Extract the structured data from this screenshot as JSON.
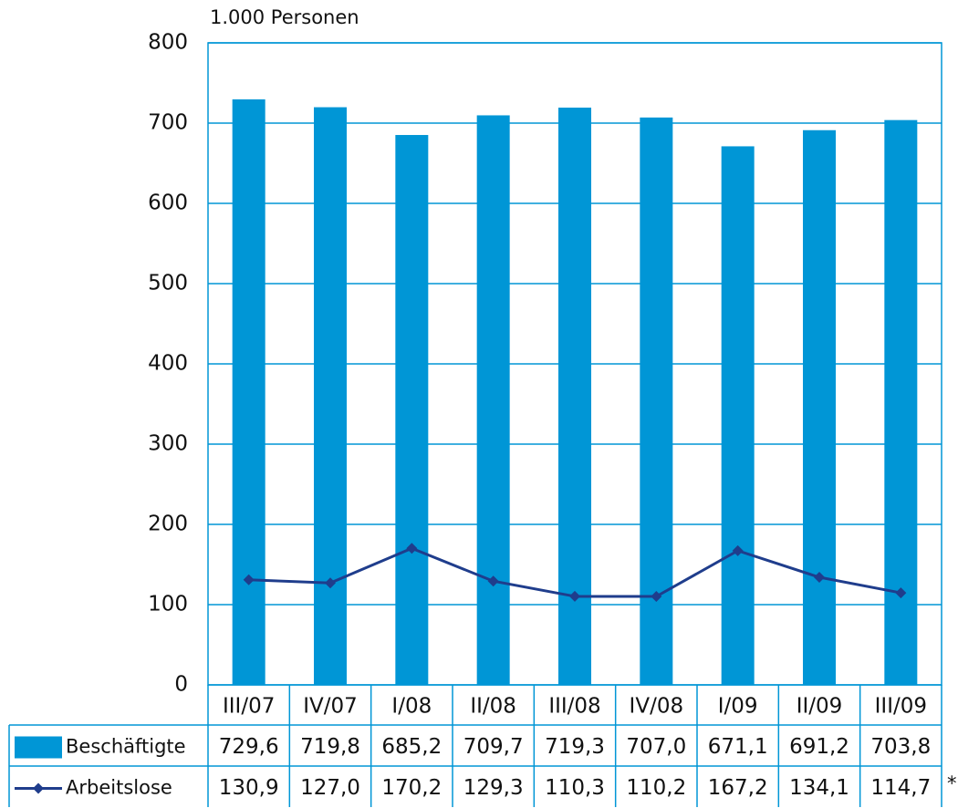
{
  "chart_data": {
    "type": "bar_line_table",
    "y_label": "1.000 Personen",
    "categories": [
      "III/07",
      "IV/07",
      "I/08",
      "II/08",
      "III/08",
      "IV/08",
      "I/09",
      "II/09",
      "III/09"
    ],
    "series": [
      {
        "name": "Beschäftigte",
        "type": "bar",
        "color": "#0096d6",
        "values": [
          729.6,
          719.8,
          685.2,
          709.7,
          719.3,
          707.0,
          671.1,
          691.2,
          703.8
        ],
        "value_labels": [
          "729,6",
          "719,8",
          "685,2",
          "709,7",
          "719,3",
          "707,0",
          "671,1",
          "691,2",
          "703,8"
        ]
      },
      {
        "name": "Arbeitslose",
        "type": "line",
        "color": "#1f3d8c",
        "values": [
          130.9,
          127.0,
          170.2,
          129.3,
          110.3,
          110.2,
          167.2,
          134.1,
          114.7
        ],
        "value_labels": [
          "130,9",
          "127,0",
          "170,2",
          "129,3",
          "110,3",
          "110,2",
          "167,2",
          "134,1",
          "114,7"
        ]
      }
    ],
    "ylim": [
      0,
      800
    ],
    "yticks": [
      0,
      100,
      200,
      300,
      400,
      500,
      600,
      700,
      800
    ],
    "grid": true,
    "footnote": "*"
  }
}
